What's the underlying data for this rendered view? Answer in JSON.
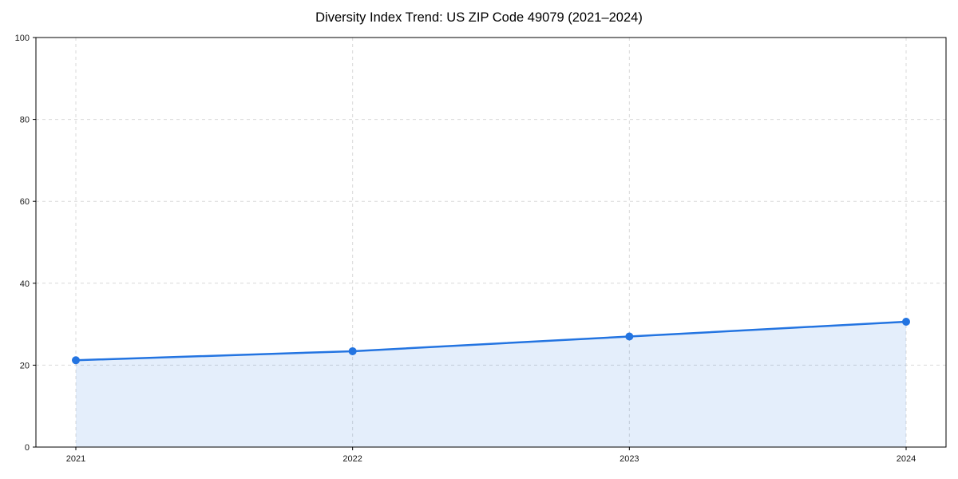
{
  "chart_data": {
    "type": "line",
    "title": "Diversity Index Trend: US ZIP Code 49079 (2021–2024)",
    "categories": [
      "2021",
      "2022",
      "2023",
      "2024"
    ],
    "series": [
      {
        "name": "Diversity Index",
        "values": [
          21.2,
          23.4,
          27.0,
          30.6
        ]
      }
    ],
    "xlabel": "",
    "ylabel": "",
    "ylim": [
      0,
      100
    ],
    "yticks": [
      0,
      20,
      40,
      60,
      80,
      100
    ],
    "grid": true,
    "grid_style": "dashed",
    "legend_position": "none",
    "colors": {
      "line": "#2374e1",
      "marker": "#2374e1",
      "fill": "#2374e1",
      "fill_opacity": 0.12,
      "grid": "#d9d9d9",
      "axis": "#000000",
      "background": "#ffffff"
    }
  }
}
